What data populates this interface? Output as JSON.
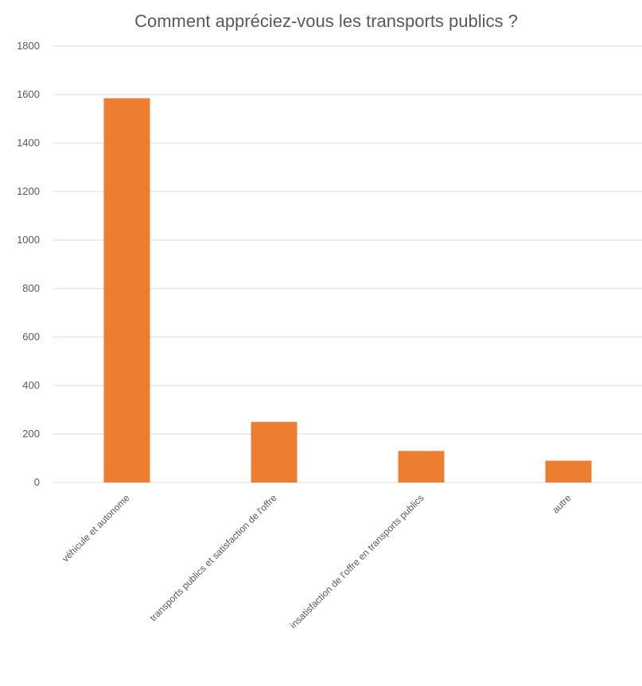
{
  "chart_data": {
    "type": "bar",
    "title": "Comment appréciez-vous les transports publics ?",
    "xlabel": "",
    "ylabel": "",
    "categories": [
      "véhicule et autonome",
      "transports publics et satisfaction de l'offre",
      "insatisfaction de l'offre en transports publics",
      "autre"
    ],
    "values": [
      1585,
      250,
      130,
      90
    ],
    "ylim": [
      0,
      1800
    ],
    "yticks": [
      0,
      200,
      400,
      600,
      800,
      1000,
      1200,
      1400,
      1600,
      1800
    ],
    "grid": true,
    "legend": "none",
    "bar_color": "#ED7D31"
  }
}
